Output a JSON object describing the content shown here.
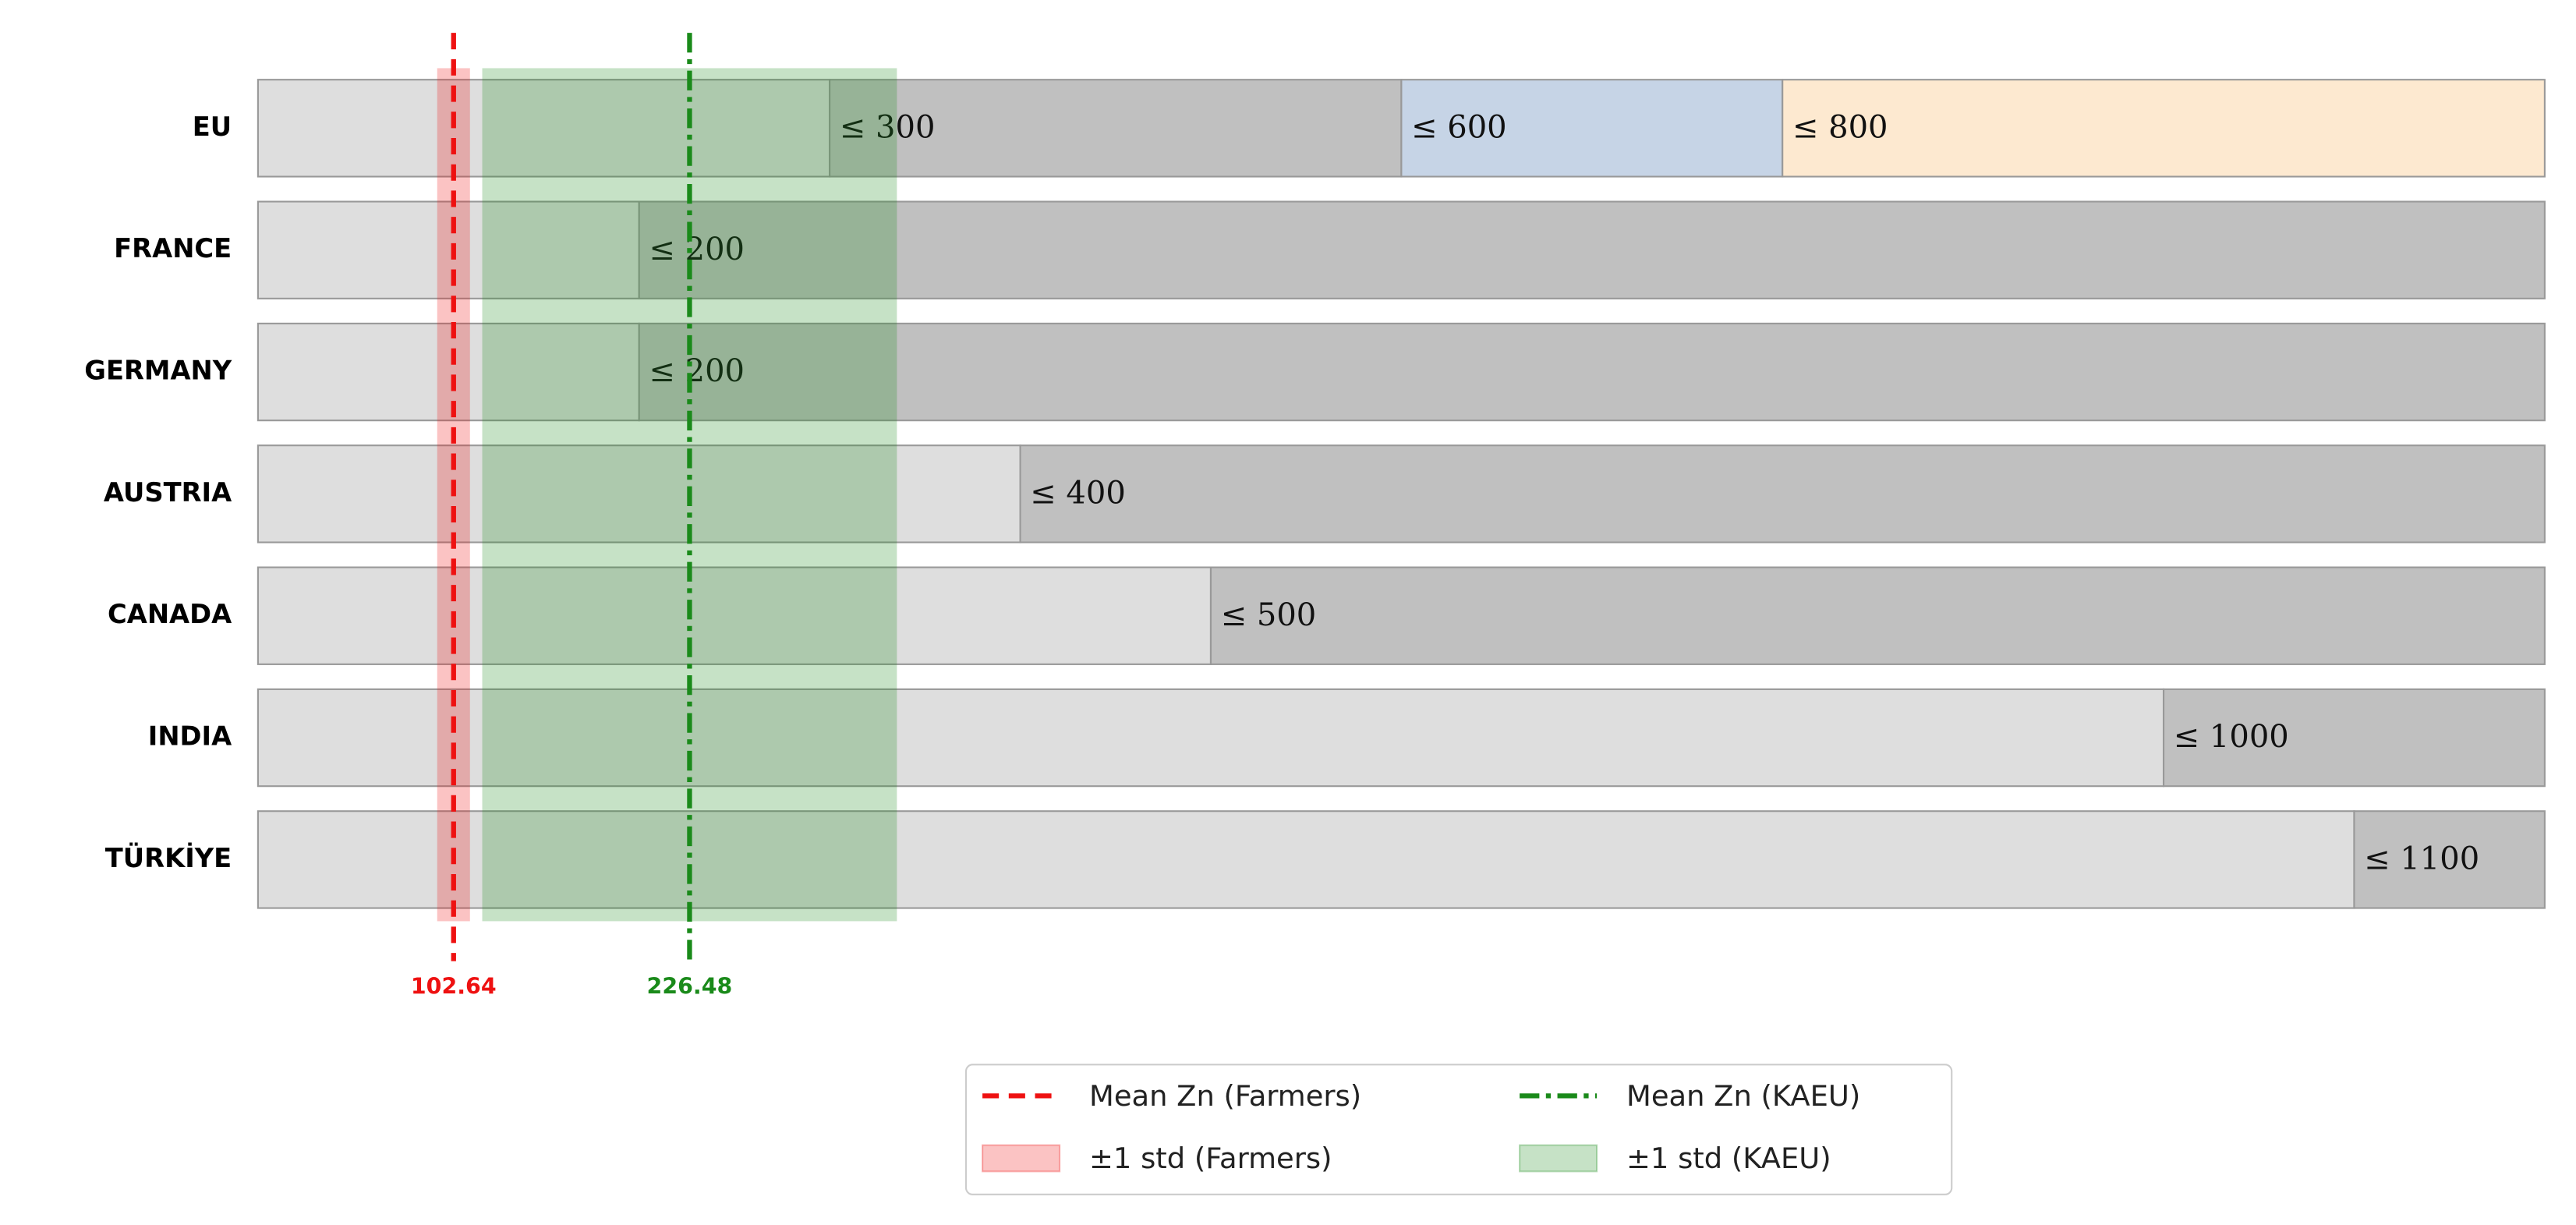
{
  "chart_data": {
    "type": "threshold-bar",
    "xlim": [
      0,
      1200
    ],
    "rows": [
      {
        "name": "EU",
        "thresholds": [
          300,
          600,
          800
        ],
        "value_labels": [
          "≤ 300",
          "≤ 600",
          "≤ 800"
        ],
        "colors": [
          "#dedede",
          "#c0c0c0",
          "#c6d4e6",
          "#fde9d0"
        ]
      },
      {
        "name": "FRANCE",
        "thresholds": [
          200
        ],
        "value_labels": [
          "≤ 200"
        ],
        "colors": [
          "#dedede",
          "#c0c0c0"
        ]
      },
      {
        "name": "GERMANY",
        "thresholds": [
          200
        ],
        "value_labels": [
          "≤ 200"
        ],
        "colors": [
          "#dedede",
          "#c0c0c0"
        ]
      },
      {
        "name": "AUSTRIA",
        "thresholds": [
          400
        ],
        "value_labels": [
          "≤ 400"
        ],
        "colors": [
          "#dedede",
          "#c0c0c0"
        ]
      },
      {
        "name": "CANADA",
        "thresholds": [
          500
        ],
        "value_labels": [
          "≤ 500"
        ],
        "colors": [
          "#dedede",
          "#c0c0c0"
        ]
      },
      {
        "name": "INDIA",
        "thresholds": [
          1000
        ],
        "value_labels": [
          "≤ 1000"
        ],
        "colors": [
          "#dedede",
          "#c0c0c0"
        ]
      },
      {
        "name": "TÜRKİYE",
        "thresholds": [
          1100
        ],
        "value_labels": [
          "≤ 1100"
        ],
        "colors": [
          "#dedede",
          "#c0c0c0"
        ]
      }
    ],
    "markers": [
      {
        "name": "Mean Zn (Farmers)",
        "value": 102.64,
        "std": 8.6,
        "std_name": "±1 std (Farmers)",
        "color": "#ee1111",
        "dash": "dashed"
      },
      {
        "name": "Mean Zn (KAEU)",
        "value": 226.48,
        "std": 108.8,
        "std_name": "±1 std (KAEU)",
        "color": "#1a8a1a",
        "dash": "dashdot"
      }
    ],
    "legend": "lower center"
  }
}
